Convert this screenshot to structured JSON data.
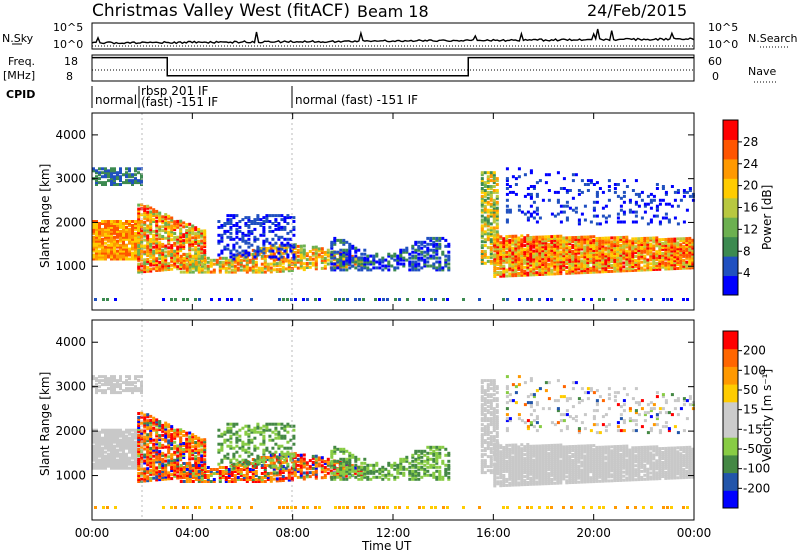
{
  "header": {
    "title": "Christmas Valley West (fitACF)",
    "beam": "Beam 18",
    "date": "24/Feb/2015"
  },
  "params": {
    "nsky_label": "N.Sky",
    "nsearch_label": "N.Search",
    "n_ticks": [
      "10^5",
      "10^0"
    ],
    "freq_label": "Freq.",
    "freq_unit": "[MHz]",
    "freq_ticks": [
      "18",
      "8"
    ],
    "nave_label": "Nave",
    "nave_ticks": [
      "60",
      "0"
    ],
    "cpid_label": "CPID",
    "cpid_segments": [
      {
        "label": "normal",
        "start": "00:00"
      },
      {
        "label": "rbsp 201 IF",
        "label2": "(fast) -151 IF",
        "start": "01:45"
      },
      {
        "label": "normal (fast) -151 IF",
        "start": "07:50"
      }
    ],
    "freq_step": {
      "low_start": "03:00",
      "low_end": "15:00",
      "high": 17,
      "low": 10
    }
  },
  "colors": {
    "power_scale": [
      "#0000ff",
      "#2050c0",
      "#3c8a50",
      "#6cb050",
      "#b8c840",
      "#ffcc00",
      "#ff9900",
      "#ff5500",
      "#ff0000"
    ],
    "velocity_scale": [
      "#ff0000",
      "#ff6600",
      "#ff9900",
      "#ffcc00",
      "#cccccc",
      "#cccccc",
      "#88cc44",
      "#448844",
      "#2255aa",
      "#0000ff"
    ],
    "ground_scatter": "#c8c8c8"
  },
  "chart_data": [
    {
      "type": "heatmap",
      "name": "power-panel",
      "ylabel": "Slant Range [km]",
      "yticks": [
        "1000",
        "2000",
        "3000",
        "4000"
      ],
      "ylim": [
        0,
        4500
      ],
      "x_range": [
        "00:00",
        "24:00"
      ],
      "colorbar": {
        "label": "Power [dB]",
        "ticks": [
          "28",
          "24",
          "20",
          "16",
          "12",
          "8",
          "4"
        ],
        "range": [
          0,
          32
        ]
      }
    },
    {
      "type": "heatmap",
      "name": "velocity-panel",
      "ylabel": "Slant Range [km]",
      "yticks": [
        "1000",
        "2000",
        "3000",
        "4000"
      ],
      "ylim": [
        0,
        4500
      ],
      "x_range": [
        "00:00",
        "24:00"
      ],
      "xlabel": "Time UT",
      "xticks": [
        "00:00",
        "04:00",
        "08:00",
        "12:00",
        "16:00",
        "20:00",
        "00:00"
      ],
      "colorbar": {
        "label": "Velocity [m s⁻¹]",
        "ticks": [
          "200",
          "100",
          "50",
          "15",
          "-15",
          "-50",
          "-100",
          "-200"
        ],
        "range": [
          -250,
          250
        ]
      }
    }
  ]
}
